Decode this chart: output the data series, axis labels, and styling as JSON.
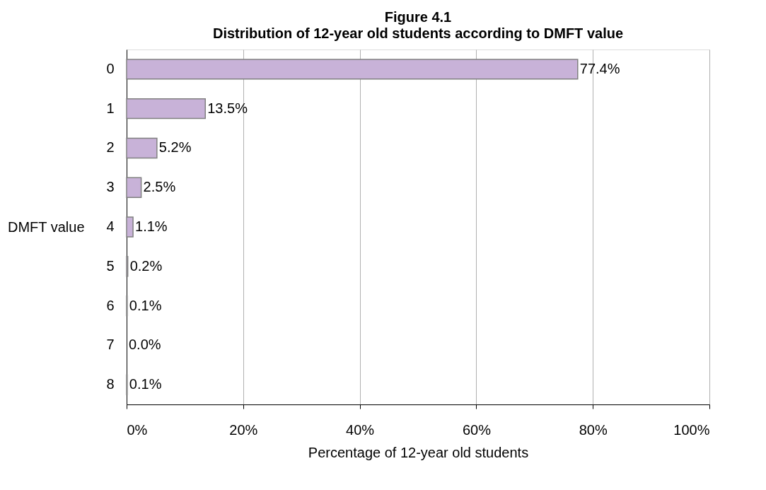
{
  "chart_data": {
    "type": "bar",
    "orientation": "horizontal",
    "title": "Figure 4.1",
    "subtitle": "Distribution of 12-year old students according to DMFT value",
    "xlabel": "Percentage of 12-year old students",
    "ylabel": "DMFT value",
    "categories": [
      "0",
      "1",
      "2",
      "3",
      "4",
      "5",
      "6",
      "7",
      "8"
    ],
    "values": [
      77.4,
      13.5,
      5.2,
      2.5,
      1.1,
      0.2,
      0.1,
      0.0,
      0.1
    ],
    "value_labels": [
      "77.4%",
      "13.5%",
      "5.2%",
      "2.5%",
      "1.1%",
      "0.2%",
      "0.1%",
      "0.0%",
      "0.1%"
    ],
    "color": "#c8b2d8",
    "xlim": [
      0,
      100
    ],
    "xticks": [
      {
        "value": 0,
        "label": "0%"
      },
      {
        "value": 20,
        "label": "20%"
      },
      {
        "value": 40,
        "label": "40%"
      },
      {
        "value": 60,
        "label": "60%"
      },
      {
        "value": 80,
        "label": "80%"
      },
      {
        "value": 100,
        "label": "100%"
      }
    ],
    "grid": "x"
  }
}
